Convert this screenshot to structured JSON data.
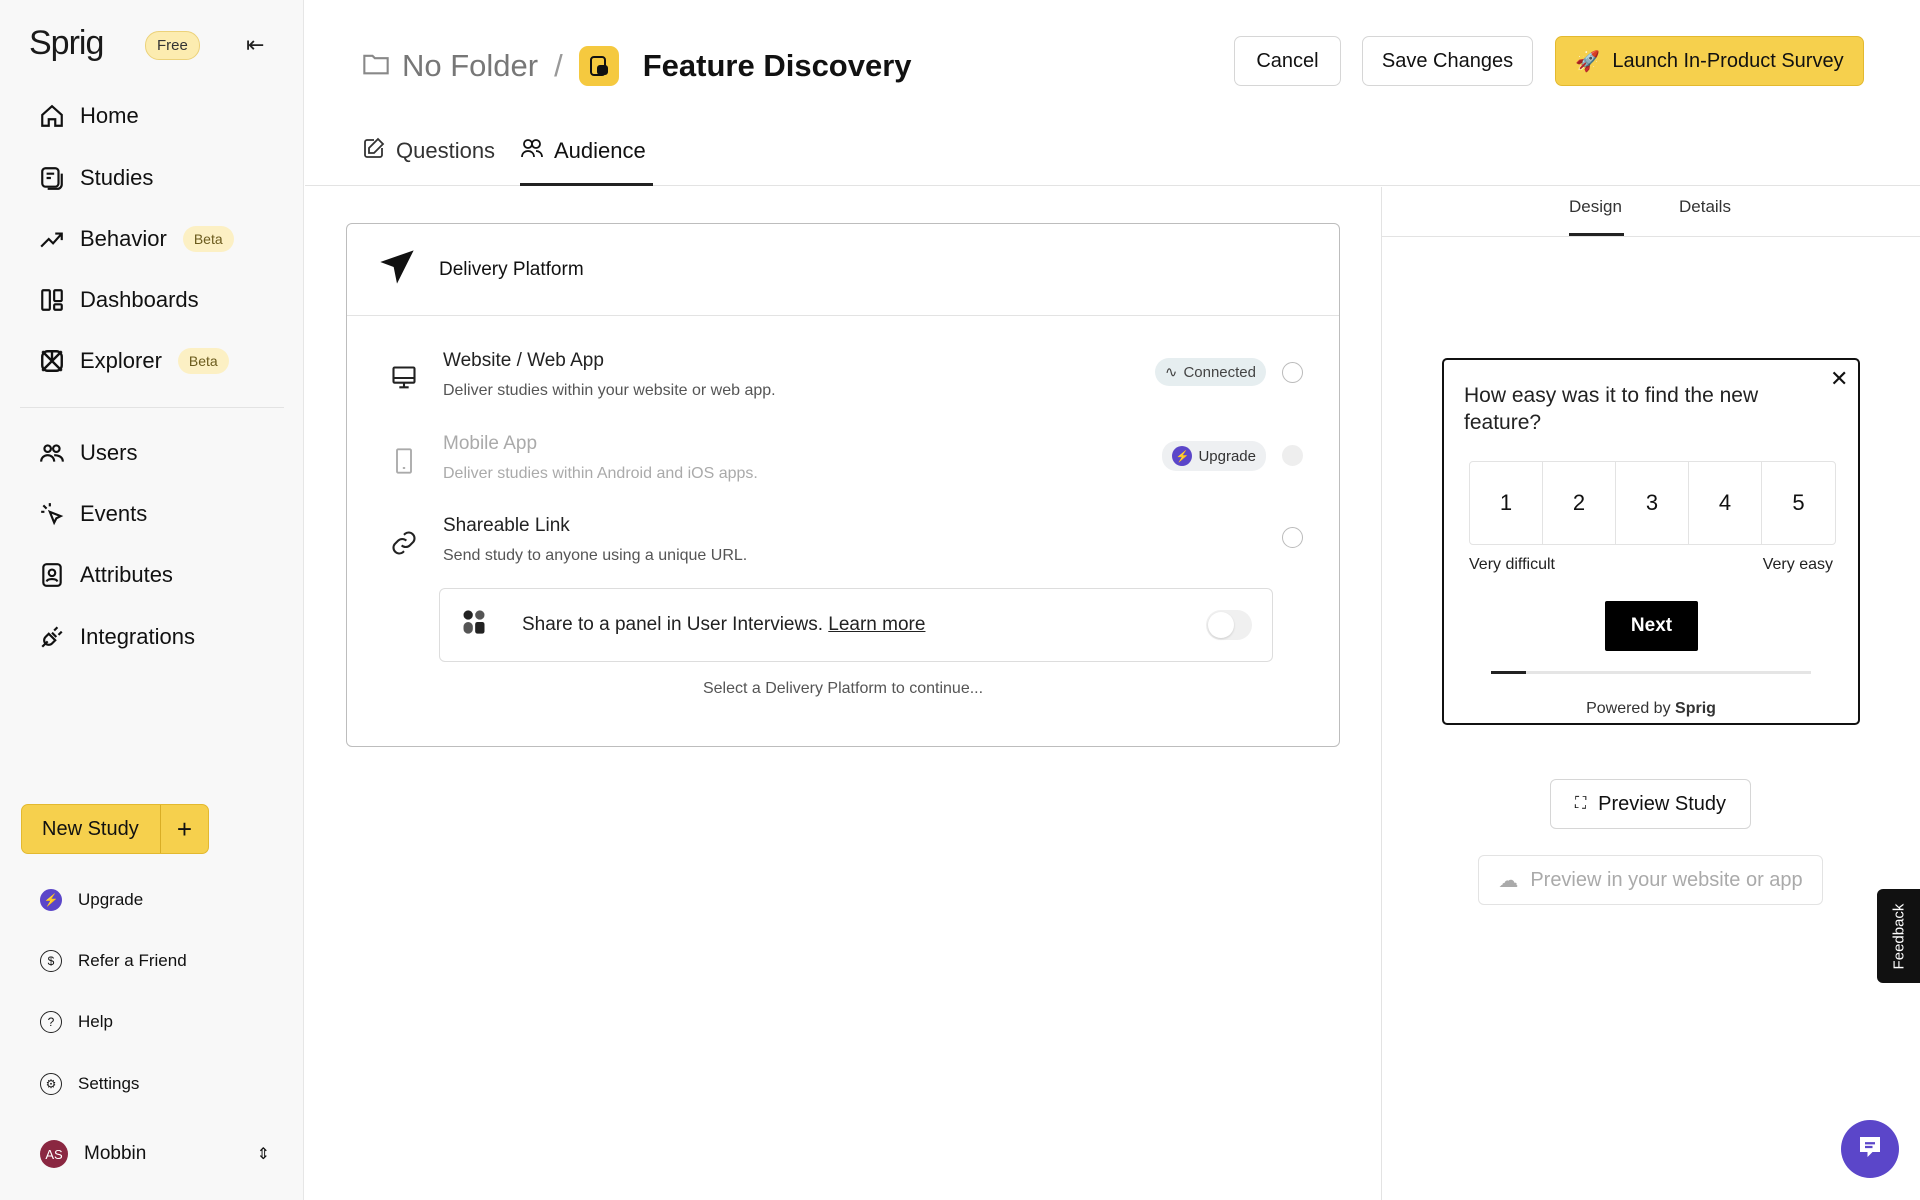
{
  "sidebar": {
    "logo": "Sprig",
    "plan_badge": "Free",
    "nav": [
      {
        "label": "Home",
        "icon": "home-icon"
      },
      {
        "label": "Studies",
        "icon": "studies-icon"
      },
      {
        "label": "Behavior",
        "icon": "trend-icon",
        "badge": "Beta"
      },
      {
        "label": "Dashboards",
        "icon": "dashboard-icon"
      },
      {
        "label": "Explorer",
        "icon": "explorer-icon",
        "badge": "Beta"
      },
      {
        "label": "Users",
        "icon": "users-icon"
      },
      {
        "label": "Events",
        "icon": "events-icon"
      },
      {
        "label": "Attributes",
        "icon": "attributes-icon"
      },
      {
        "label": "Integrations",
        "icon": "plug-icon"
      }
    ],
    "new_study": "New Study",
    "new_study_plus": "+",
    "bottom": [
      {
        "label": "Upgrade",
        "icon": "bolt-icon"
      },
      {
        "label": "Refer a Friend",
        "icon": "dollar-icon"
      },
      {
        "label": "Help",
        "icon": "help-icon"
      },
      {
        "label": "Settings",
        "icon": "gear-icon"
      }
    ],
    "user": {
      "initials": "AS",
      "name": "Mobbin"
    }
  },
  "header": {
    "folder": "No Folder",
    "separator": "/",
    "title": "Feature Discovery",
    "cancel": "Cancel",
    "save": "Save Changes",
    "launch": "Launch In-Product Survey",
    "tabs": [
      {
        "label": "Questions"
      },
      {
        "label": "Audience",
        "active": true
      }
    ]
  },
  "delivery": {
    "heading": "Delivery Platform",
    "options": [
      {
        "title": "Website / Web App",
        "desc": "Deliver studies within your website or web app.",
        "badge": "Connected"
      },
      {
        "title": "Mobile App",
        "desc": "Deliver studies within Android and iOS apps.",
        "badge": "Upgrade",
        "disabled": true
      },
      {
        "title": "Shareable Link",
        "desc": "Send study to anyone using a unique URL."
      }
    ],
    "panel_text": "Share to a panel in User Interviews.",
    "panel_link": "Learn more",
    "hint": "Select a Delivery Platform to continue..."
  },
  "preview": {
    "tabs": [
      {
        "label": "Design",
        "active": true
      },
      {
        "label": "Details"
      }
    ],
    "question": "How easy was it to find the new feature?",
    "scale": [
      "1",
      "2",
      "3",
      "4",
      "5"
    ],
    "low_label": "Very difficult",
    "high_label": "Very easy",
    "next": "Next",
    "progress": 0.11,
    "powered_by": "Powered by",
    "powered_brand": "Sprig",
    "preview_study": "Preview Study",
    "preview_site": "Preview in your website or app"
  },
  "feedback_tab": "Feedback",
  "colors": {
    "accent": "#f6d04d",
    "upgrade": "#5b46c9",
    "connected_bg": "#e6eef0"
  }
}
